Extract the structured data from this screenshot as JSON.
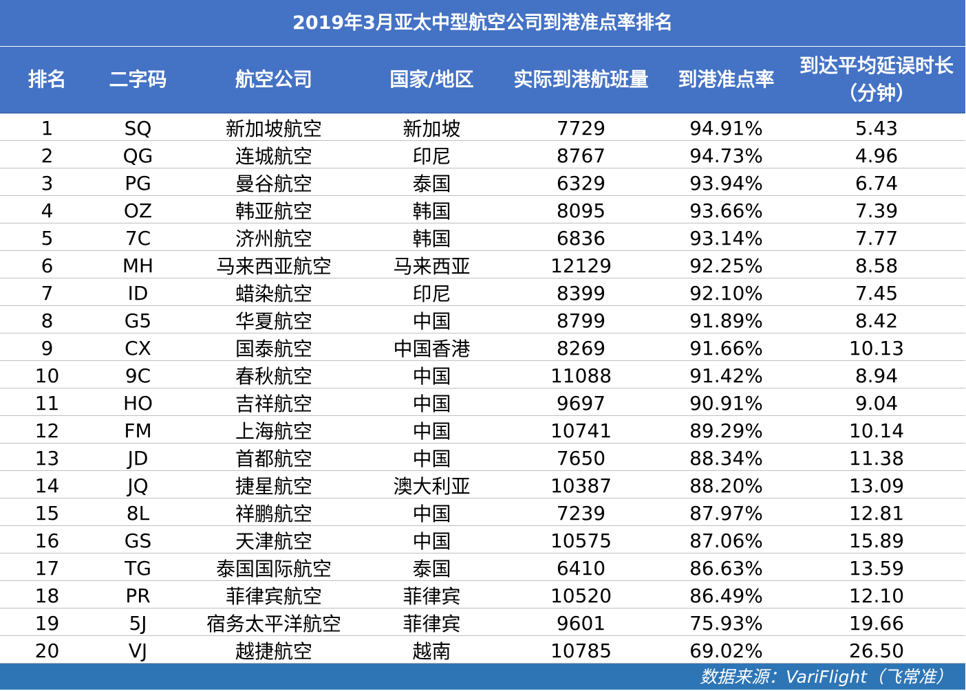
{
  "title": "2019年3月亚太中型航空公司到港准点率排名",
  "headers": {
    "rank": "排名",
    "code": "二字码",
    "airline": "航空公司",
    "country": "国家/地区",
    "flights": "实际到港航班量",
    "otp": "到港准点率",
    "delay_line1": "到达平均延误时长",
    "delay_line2": "（分钟）"
  },
  "rows": [
    {
      "rank": "1",
      "code": "SQ",
      "airline": "新加坡航空",
      "country": "新加坡",
      "flights": "7729",
      "otp": "94.91%",
      "delay": "5.43"
    },
    {
      "rank": "2",
      "code": "QG",
      "airline": "连城航空",
      "country": "印尼",
      "flights": "8767",
      "otp": "94.73%",
      "delay": "4.96"
    },
    {
      "rank": "3",
      "code": "PG",
      "airline": "曼谷航空",
      "country": "泰国",
      "flights": "6329",
      "otp": "93.94%",
      "delay": "6.74"
    },
    {
      "rank": "4",
      "code": "OZ",
      "airline": "韩亚航空",
      "country": "韩国",
      "flights": "8095",
      "otp": "93.66%",
      "delay": "7.39"
    },
    {
      "rank": "5",
      "code": "7C",
      "airline": "济州航空",
      "country": "韩国",
      "flights": "6836",
      "otp": "93.14%",
      "delay": "7.77"
    },
    {
      "rank": "6",
      "code": "MH",
      "airline": "马来西亚航空",
      "country": "马来西亚",
      "flights": "12129",
      "otp": "92.25%",
      "delay": "8.58"
    },
    {
      "rank": "7",
      "code": "ID",
      "airline": "蜡染航空",
      "country": "印尼",
      "flights": "8399",
      "otp": "92.10%",
      "delay": "7.45"
    },
    {
      "rank": "8",
      "code": "G5",
      "airline": "华夏航空",
      "country": "中国",
      "flights": "8799",
      "otp": "91.89%",
      "delay": "8.42"
    },
    {
      "rank": "9",
      "code": "CX",
      "airline": "国泰航空",
      "country": "中国香港",
      "flights": "8269",
      "otp": "91.66%",
      "delay": "10.13"
    },
    {
      "rank": "10",
      "code": "9C",
      "airline": "春秋航空",
      "country": "中国",
      "flights": "11088",
      "otp": "91.42%",
      "delay": "8.94"
    },
    {
      "rank": "11",
      "code": "HO",
      "airline": "吉祥航空",
      "country": "中国",
      "flights": "9697",
      "otp": "90.91%",
      "delay": "9.04"
    },
    {
      "rank": "12",
      "code": "FM",
      "airline": "上海航空",
      "country": "中国",
      "flights": "10741",
      "otp": "89.29%",
      "delay": "10.14"
    },
    {
      "rank": "13",
      "code": "JD",
      "airline": "首都航空",
      "country": "中国",
      "flights": "7650",
      "otp": "88.34%",
      "delay": "11.38"
    },
    {
      "rank": "14",
      "code": "JQ",
      "airline": "捷星航空",
      "country": "澳大利亚",
      "flights": "10387",
      "otp": "88.20%",
      "delay": "13.09"
    },
    {
      "rank": "15",
      "code": "8L",
      "airline": "祥鹏航空",
      "country": "中国",
      "flights": "7239",
      "otp": "87.97%",
      "delay": "12.81"
    },
    {
      "rank": "16",
      "code": "GS",
      "airline": "天津航空",
      "country": "中国",
      "flights": "10575",
      "otp": "87.06%",
      "delay": "15.89"
    },
    {
      "rank": "17",
      "code": "TG",
      "airline": "泰国国际航空",
      "country": "泰国",
      "flights": "6410",
      "otp": "86.63%",
      "delay": "13.59"
    },
    {
      "rank": "18",
      "code": "PR",
      "airline": "菲律宾航空",
      "country": "菲律宾",
      "flights": "10520",
      "otp": "86.49%",
      "delay": "12.10"
    },
    {
      "rank": "19",
      "code": "5J",
      "airline": "宿务太平洋航空",
      "country": "菲律宾",
      "flights": "9601",
      "otp": "75.93%",
      "delay": "19.66"
    },
    {
      "rank": "20",
      "code": "VJ",
      "airline": "越捷航空",
      "country": "越南",
      "flights": "10785",
      "otp": "69.02%",
      "delay": "26.50"
    }
  ],
  "footer": "数据来源：VariFlight（飞常准）",
  "colors": {
    "header_bg": "#4472c4",
    "footer_bg": "#2e75b6",
    "header_text": "#ffffff"
  }
}
